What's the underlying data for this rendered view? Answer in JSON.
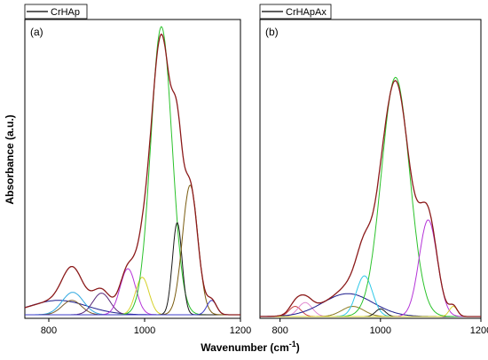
{
  "figure": {
    "ylabel": "Absorbance (a.u.)",
    "xlabel_main": "Wavenumber (cm",
    "xlabel_sup": "-1",
    "xlabel_close": ")"
  },
  "chart_data": [
    {
      "type": "line",
      "panel_label": "(a)",
      "legend": [
        "CrHAp"
      ],
      "legend_position": "top-left",
      "xlim": [
        750,
        1200
      ],
      "xticks": [
        800,
        1000,
        1200
      ],
      "yticks": [],
      "grid": false,
      "envelope": {
        "color": "#8b1a1a"
      },
      "components": [
        {
          "center": 820,
          "height": 0.05,
          "width": 60,
          "color": "#1c1c8c"
        },
        {
          "center": 850,
          "height": 0.078,
          "width": 22,
          "color": "#2fa8e0"
        },
        {
          "center": 848,
          "height": 0.05,
          "width": 20,
          "color": "#7a5c2c"
        },
        {
          "center": 910,
          "height": 0.075,
          "width": 18,
          "color": "#5a2a7a"
        },
        {
          "center": 965,
          "height": 0.16,
          "width": 16,
          "color": "#b535d8"
        },
        {
          "center": 995,
          "height": 0.13,
          "width": 14,
          "color": "#d6d12a"
        },
        {
          "center": 1035,
          "height": 1.0,
          "width": 22,
          "color": "#2bc22b"
        },
        {
          "center": 1068,
          "height": 0.32,
          "width": 10,
          "color": "#1a1a1a"
        },
        {
          "center": 1095,
          "height": 0.45,
          "width": 16,
          "color": "#7a5c10"
        },
        {
          "center": 1140,
          "height": 0.05,
          "width": 10,
          "color": "#3c3cc8"
        }
      ]
    },
    {
      "type": "line",
      "panel_label": "(b)",
      "legend": [
        "CrHApAx"
      ],
      "legend_position": "top-left",
      "xlim": [
        760,
        1200
      ],
      "xticks": [
        800,
        1000,
        1200
      ],
      "yticks": [],
      "grid": false,
      "envelope": {
        "color": "#8b1a1a"
      },
      "components": [
        {
          "center": 830,
          "height": 0.04,
          "width": 12,
          "color": "#c84040"
        },
        {
          "center": 850,
          "height": 0.055,
          "width": 14,
          "color": "#e08ad0"
        },
        {
          "center": 935,
          "height": 0.09,
          "width": 50,
          "color": "#1c1c8c"
        },
        {
          "center": 945,
          "height": 0.04,
          "width": 22,
          "color": "#8a7a20"
        },
        {
          "center": 968,
          "height": 0.16,
          "width": 16,
          "color": "#2fc8e8"
        },
        {
          "center": 1000,
          "height": 0.03,
          "width": 10,
          "color": "#1a1a1a"
        },
        {
          "center": 1030,
          "height": 0.94,
          "width": 28,
          "color": "#2bc22b"
        },
        {
          "center": 1095,
          "height": 0.38,
          "width": 18,
          "color": "#b535d8"
        },
        {
          "center": 1145,
          "height": 0.04,
          "width": 8,
          "color": "#d6d12a"
        }
      ]
    }
  ]
}
